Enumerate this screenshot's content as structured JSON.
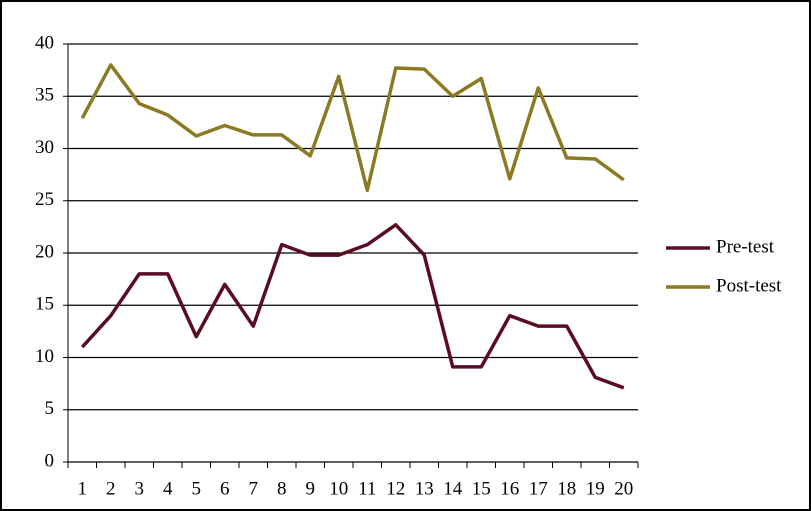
{
  "chart_data": {
    "type": "line",
    "categories": [
      "1",
      "2",
      "3",
      "4",
      "5",
      "6",
      "7",
      "8",
      "9",
      "10",
      "11",
      "12",
      "13",
      "14",
      "15",
      "16",
      "17",
      "18",
      "19",
      "20"
    ],
    "series": [
      {
        "name": "Pre-test",
        "color": "#5a0d20",
        "values": [
          11,
          14,
          18,
          18,
          12,
          17,
          13,
          20.8,
          19.8,
          19.8,
          20.8,
          22.7,
          19.8,
          9.1,
          9.1,
          14,
          13,
          13,
          8.1,
          7.1
        ]
      },
      {
        "name": "Post-test",
        "color": "#8b7a22",
        "values": [
          32.9,
          38,
          34.3,
          33.2,
          31.2,
          32.2,
          31.3,
          31.3,
          29.3,
          36.9,
          26,
          37.7,
          37.6,
          35,
          36.7,
          27.1,
          35.8,
          29.1,
          29,
          27
        ]
      }
    ],
    "ylim": [
      0,
      40
    ],
    "yticks": [
      0,
      5,
      10,
      15,
      20,
      25,
      30,
      35,
      40
    ],
    "grid": true,
    "legend": "right"
  }
}
